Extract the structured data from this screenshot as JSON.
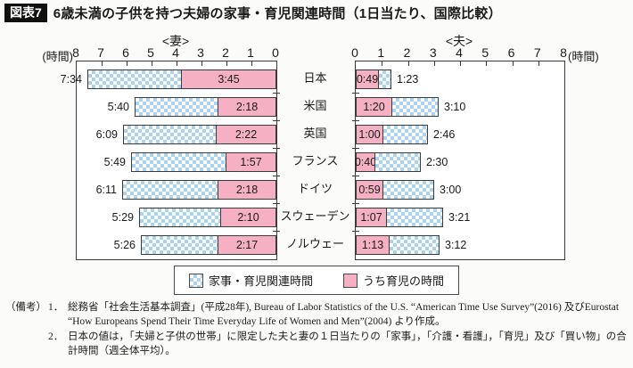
{
  "title": {
    "tag": "図表7",
    "text": "6歳未満の子供を持つ夫婦の家事・育児関連時間（1日当たり、国際比較）"
  },
  "chart_data": {
    "type": "bar",
    "layout": "mirrored-horizontal",
    "panel_headers": [
      "<妻>",
      "<夫>"
    ],
    "unit_label": "(時間)",
    "axis_range_hours": [
      0,
      8
    ],
    "axis_tick_hours": [
      0,
      1,
      2,
      3,
      4,
      5,
      6,
      7,
      8
    ],
    "categories": [
      "日本",
      "米国",
      "英国",
      "フランス",
      "ドイツ",
      "スウェーデン",
      "ノルウェー"
    ],
    "series": [
      {
        "name": "妻 家事・育児関連時間",
        "values_hhmm": [
          "7:34",
          "5:40",
          "6:09",
          "5:49",
          "6:11",
          "5:29",
          "5:26"
        ]
      },
      {
        "name": "妻 うち育児の時間",
        "values_hhmm": [
          "3:45",
          "2:18",
          "2:22",
          "1:57",
          "2:18",
          "2:10",
          "2:17"
        ]
      },
      {
        "name": "夫 家事・育児関連時間",
        "values_hhmm": [
          "1:23",
          "3:10",
          "2:46",
          "2:30",
          "3:00",
          "3:21",
          "3:12"
        ]
      },
      {
        "name": "夫 うち育児の時間",
        "values_hhmm": [
          "0:49",
          "1:20",
          "1:00",
          "0:40",
          "0:59",
          "1:07",
          "1:13"
        ]
      }
    ],
    "legend": [
      {
        "label": "家事・育児関連時間",
        "swatch": "blue-checker"
      },
      {
        "label": "うち育児の時間",
        "swatch": "pink"
      }
    ],
    "colors": {
      "blue_check": "#a9d3f1",
      "pink": "#f5b1c3",
      "bar_border": "#3b3b3b"
    }
  },
  "notes": {
    "prefix": "（備考）",
    "items": [
      {
        "num": "1．",
        "text": "総務省「社会生活基本調査」(平成28年), Bureau of Labor Statistics of the U.S. “American Time Use Survey”(2016) 及びEurostat “How Europeans Spend Their Time Everyday Life of Women and Men”(2004) より作成。"
      },
      {
        "num": "2．",
        "text": "日本の値は，「夫婦と子供の世帯」に限定した夫と妻の１日当たりの「家事」，「介護・看護」，「育児」及び「買い物」の合計時間（週全体平均）。"
      }
    ]
  }
}
